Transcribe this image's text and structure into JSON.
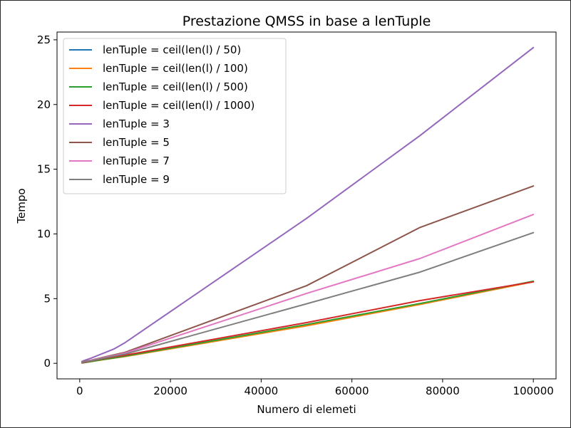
{
  "chart_data": {
    "type": "line",
    "title": "Prestazione QMSS in base a lenTuple",
    "xlabel": "Numero di elemeti",
    "ylabel": "Tempo",
    "xlim": [
      -5000,
      105000
    ],
    "ylim": [
      -1.2,
      25.6
    ],
    "xticks": [
      0,
      20000,
      40000,
      60000,
      80000,
      100000
    ],
    "xtick_labels": [
      "0",
      "20000",
      "40000",
      "60000",
      "80000",
      "100000"
    ],
    "yticks": [
      0,
      5,
      10,
      15,
      20,
      25
    ],
    "ytick_labels": [
      "0",
      "5",
      "10",
      "15",
      "20",
      "25"
    ],
    "grid": false,
    "legend_position": "upper-left",
    "series": [
      {
        "name": "lenTuple = ceil(len(l) / 50)",
        "color": "#1f77b4",
        "x": [
          500,
          1000,
          2500,
          5000,
          7500,
          10000,
          50000,
          75000,
          100000
        ],
        "y": [
          0.03,
          0.06,
          0.14,
          0.28,
          0.41,
          0.55,
          2.95,
          4.6,
          6.3
        ]
      },
      {
        "name": "lenTuple = ceil(len(l) / 100)",
        "color": "#ff7f0e",
        "x": [
          500,
          1000,
          2500,
          5000,
          7500,
          10000,
          50000,
          75000,
          100000
        ],
        "y": [
          0.03,
          0.06,
          0.13,
          0.27,
          0.4,
          0.53,
          2.9,
          4.55,
          6.3
        ]
      },
      {
        "name": "lenTuple = ceil(len(l) / 500)",
        "color": "#2ca02c",
        "x": [
          500,
          1000,
          2500,
          5000,
          7500,
          10000,
          50000,
          75000,
          100000
        ],
        "y": [
          0.03,
          0.06,
          0.14,
          0.29,
          0.42,
          0.56,
          3.0,
          4.62,
          6.35
        ]
      },
      {
        "name": "lenTuple = ceil(len(l) / 1000)",
        "color": "#d62728",
        "x": [
          500,
          1000,
          2500,
          5000,
          7500,
          10000,
          50000,
          75000,
          100000
        ],
        "y": [
          0.04,
          0.08,
          0.18,
          0.35,
          0.5,
          0.63,
          3.15,
          4.85,
          6.3
        ]
      },
      {
        "name": "lenTuple = 3",
        "color": "#9467bd",
        "x": [
          500,
          1000,
          2500,
          5000,
          7500,
          10000,
          50000,
          75000,
          100000
        ],
        "y": [
          0.15,
          0.22,
          0.4,
          0.75,
          1.1,
          1.6,
          11.2,
          17.6,
          24.4
        ]
      },
      {
        "name": "lenTuple = 5",
        "color": "#8c564b",
        "x": [
          500,
          1000,
          2500,
          5000,
          7500,
          10000,
          50000,
          75000,
          100000
        ],
        "y": [
          0.1,
          0.15,
          0.25,
          0.45,
          0.65,
          0.85,
          6.0,
          10.5,
          13.7
        ]
      },
      {
        "name": "lenTuple = 7",
        "color": "#e377c2",
        "x": [
          500,
          1000,
          2500,
          5000,
          7500,
          10000,
          50000,
          75000,
          100000
        ],
        "y": [
          0.08,
          0.13,
          0.23,
          0.42,
          0.6,
          0.8,
          5.4,
          8.1,
          11.5
        ]
      },
      {
        "name": "lenTuple = 9",
        "color": "#7f7f7f",
        "x": [
          500,
          1000,
          2500,
          5000,
          7500,
          10000,
          50000,
          75000,
          100000
        ],
        "y": [
          0.07,
          0.12,
          0.2,
          0.38,
          0.55,
          0.72,
          4.6,
          7.05,
          10.1
        ]
      }
    ]
  }
}
